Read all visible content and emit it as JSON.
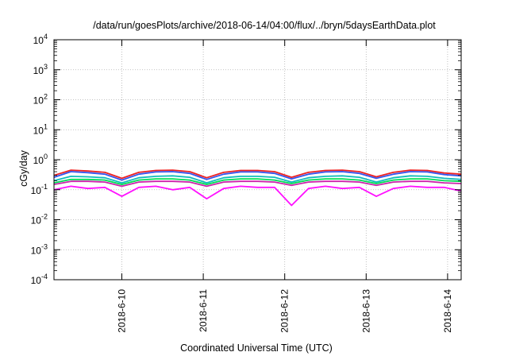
{
  "chart_data": {
    "type": "line",
    "title": "/data/run/goesPlots/archive/2018-06-14/04:00/flux/../bryn/5daysEarthData.plot",
    "xlabel": "Coordinated Universal Time (UTC)",
    "ylabel": "cGy/day",
    "yscale": "log",
    "ylim": [
      0.0001,
      10000
    ],
    "y_ticks": [
      {
        "value": 0.0001,
        "base": "10",
        "exp": "-4"
      },
      {
        "value": 0.001,
        "base": "10",
        "exp": "-3"
      },
      {
        "value": 0.01,
        "base": "10",
        "exp": "-2"
      },
      {
        "value": 0.1,
        "base": "10",
        "exp": "-1"
      },
      {
        "value": 1,
        "base": "10",
        "exp": "0"
      },
      {
        "value": 10,
        "base": "10",
        "exp": "1"
      },
      {
        "value": 100,
        "base": "10",
        "exp": "2"
      },
      {
        "value": 1000,
        "base": "10",
        "exp": "3"
      },
      {
        "value": 10000,
        "base": "10",
        "exp": "4"
      }
    ],
    "xlim": [
      "2018-06-09 04:00",
      "2018-06-14 04:00"
    ],
    "x_ticks": [
      "2018-6-10",
      "2018-6-11",
      "2018-6-12",
      "2018-6-13",
      "2018-6-14"
    ],
    "grid": true,
    "series": [
      {
        "color": "#ee2222",
        "values": [
          0.3,
          0.45,
          0.42,
          0.38,
          0.24,
          0.38,
          0.44,
          0.45,
          0.4,
          0.25,
          0.38,
          0.44,
          0.44,
          0.4,
          0.26,
          0.38,
          0.44,
          0.45,
          0.4,
          0.27,
          0.38,
          0.45,
          0.44,
          0.36,
          0.33
        ]
      },
      {
        "color": "#3355ee",
        "values": [
          0.26,
          0.4,
          0.37,
          0.33,
          0.21,
          0.33,
          0.39,
          0.4,
          0.35,
          0.22,
          0.33,
          0.39,
          0.39,
          0.35,
          0.23,
          0.33,
          0.39,
          0.4,
          0.35,
          0.24,
          0.33,
          0.4,
          0.39,
          0.32,
          0.29
        ]
      },
      {
        "color": "#11bbbb",
        "values": [
          0.2,
          0.28,
          0.27,
          0.25,
          0.17,
          0.25,
          0.28,
          0.29,
          0.26,
          0.17,
          0.25,
          0.28,
          0.28,
          0.26,
          0.18,
          0.25,
          0.28,
          0.29,
          0.26,
          0.18,
          0.25,
          0.29,
          0.28,
          0.24,
          0.22
        ]
      },
      {
        "color": "#00dd55",
        "values": [
          0.17,
          0.22,
          0.22,
          0.21,
          0.15,
          0.21,
          0.23,
          0.23,
          0.21,
          0.15,
          0.21,
          0.23,
          0.23,
          0.21,
          0.16,
          0.21,
          0.23,
          0.23,
          0.21,
          0.16,
          0.21,
          0.23,
          0.23,
          0.2,
          0.19
        ]
      },
      {
        "color": "#cc22aa",
        "values": [
          0.15,
          0.19,
          0.19,
          0.18,
          0.13,
          0.18,
          0.19,
          0.19,
          0.18,
          0.13,
          0.18,
          0.19,
          0.19,
          0.18,
          0.14,
          0.18,
          0.19,
          0.19,
          0.18,
          0.14,
          0.18,
          0.19,
          0.19,
          0.17,
          0.16
        ]
      },
      {
        "color": "#ff11ff",
        "values": [
          0.1,
          0.13,
          0.11,
          0.12,
          0.06,
          0.12,
          0.13,
          0.1,
          0.12,
          0.05,
          0.11,
          0.13,
          0.12,
          0.12,
          0.03,
          0.11,
          0.13,
          0.11,
          0.12,
          0.06,
          0.11,
          0.13,
          0.12,
          0.12,
          0.09
        ]
      }
    ]
  }
}
